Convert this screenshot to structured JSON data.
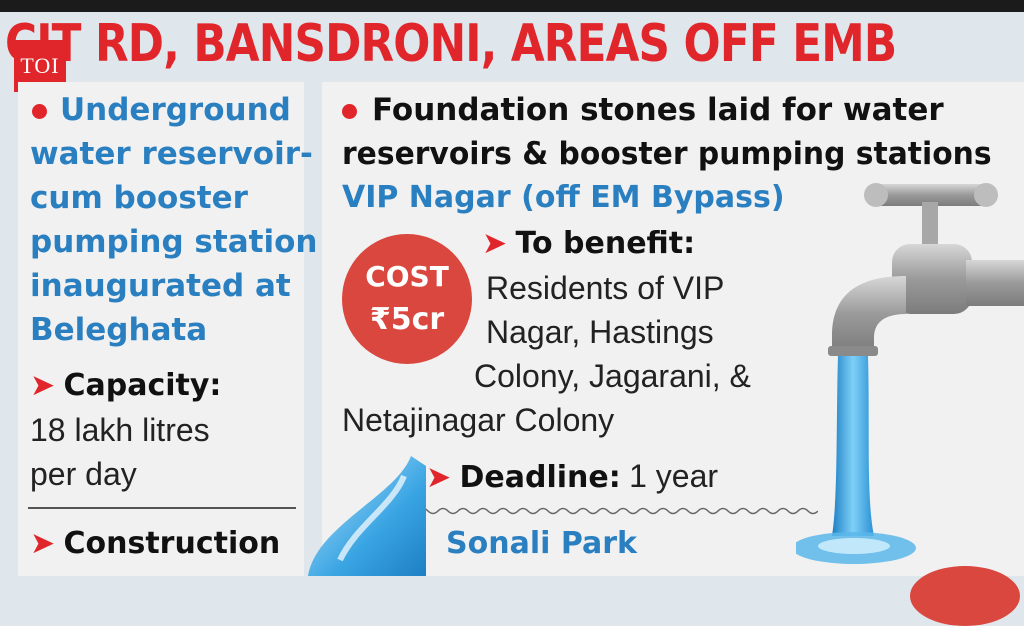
{
  "headline": "CIT RD, BANSDRONI, AREAS OFF EMB",
  "logo": "TOI",
  "left": {
    "title_lines": [
      "Underground",
      "water reservoir-",
      "cum booster",
      "pumping station",
      "inaugurated at",
      "Beleghata"
    ],
    "capacity_label": "Capacity:",
    "capacity_lines": [
      "18 lakh litres",
      "per day"
    ],
    "construction_label": "Construction"
  },
  "right": {
    "title_lines": [
      "Foundation stones laid for water",
      "reservoirs & booster pumping stations"
    ],
    "location": "VIP Nagar (off EM Bypass)",
    "benefit_label": "To benefit:",
    "benefit_lines": [
      "Residents of VIP",
      "Nagar, Hastings",
      "Colony, Jagarani, &",
      "Netajinagar Colony"
    ],
    "cost_label": "COST",
    "cost_value": "₹5cr",
    "deadline_label": "Deadline:",
    "deadline_value": "1 year",
    "location2": "Sonali Park"
  },
  "colors": {
    "accent_red": "#e0262b",
    "accent_blue": "#2a7fc0"
  },
  "icons": [
    "water-tap-icon",
    "water-drop-icon"
  ]
}
